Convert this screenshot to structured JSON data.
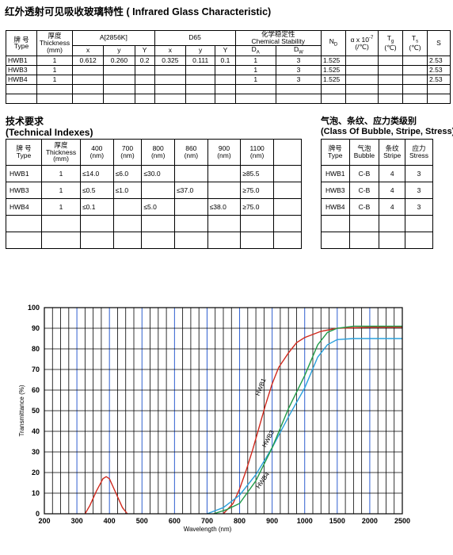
{
  "title": "红外透射可见吸收玻璃特性 ( Infrared Glass Characteristic)",
  "table1": {
    "headers": {
      "type": "牌 号\nType",
      "thickness": "厚度\nThickness\n(mm)",
      "a2856k": "A[2856K]",
      "d65": "D65",
      "chem": "化学稳定性\nChemical Stability",
      "nd": "N",
      "nd_sub": "D",
      "alpha": "α x 10\n(/℃)",
      "alpha_sup": "-7",
      "tg": "T",
      "tg_sub": "g",
      "tg_unit": "(℃)",
      "ts": "T",
      "ts_sub": "s",
      "ts_unit": "(℃)",
      "s": "S",
      "x": "x",
      "y": "y",
      "Y": "Y",
      "da": "D",
      "da_sub": "A",
      "dw": "D",
      "dw_sub": "W"
    },
    "rows": [
      [
        "HWB1",
        "1",
        "0.612",
        "0.260",
        "0.2",
        "0.325",
        "0.111",
        "0.1",
        "1",
        "3",
        "1.525",
        "",
        "",
        "",
        "2.53"
      ],
      [
        "HWB3",
        "1",
        "",
        "",
        "",
        "",
        "",
        "",
        "1",
        "3",
        "1.525",
        "",
        "",
        "",
        "2.53"
      ],
      [
        "HWB4",
        "1",
        "",
        "",
        "",
        "",
        "",
        "",
        "1",
        "3",
        "1.525",
        "",
        "",
        "",
        "2.53"
      ],
      [
        "",
        "",
        "",
        "",
        "",
        "",
        "",
        "",
        "",
        "",
        "",
        "",
        "",
        "",
        ""
      ],
      [
        "",
        "",
        "",
        "",
        "",
        "",
        "",
        "",
        "",
        "",
        "",
        "",
        "",
        "",
        ""
      ]
    ]
  },
  "tech": {
    "title_cn": "技术要求",
    "title_en": "(Technical Indexes)",
    "headers": [
      "牌 号\nType",
      "厚度\nThickness\n(mm)",
      "400\n(nm)",
      "700\n(nm)",
      "800\n(nm)",
      "860\n(nm)",
      "900\n(nm)",
      "1100\n(nm)",
      ""
    ],
    "rows": [
      [
        "HWB1",
        "1",
        "≤14.0",
        "≤6.0",
        "≤30.0",
        "",
        "",
        "≥85.5",
        ""
      ],
      [
        "HWB3",
        "1",
        "≤0.5",
        "≤1.0",
        "",
        "≤37.0",
        "",
        "≥75.0",
        ""
      ],
      [
        "HWB4",
        "1",
        "≤0.1",
        "",
        "≤5.0",
        "",
        "≤38.0",
        "≥75.0",
        ""
      ],
      [
        "",
        "",
        "",
        "",
        "",
        "",
        "",
        "",
        ""
      ],
      [
        "",
        "",
        "",
        "",
        "",
        "",
        "",
        "",
        ""
      ]
    ]
  },
  "bubble": {
    "title_cn": "气泡、条纹、应力类级别",
    "title_en": "(Class Of Bubble, Stripe, Stress)",
    "headers": [
      "牌号\nType",
      "气泡\nBubble",
      "条纹\nStripe",
      "应力\nStress"
    ],
    "rows": [
      [
        "HWB1",
        "C-B",
        "4",
        "3"
      ],
      [
        "HWB3",
        "C-B",
        "4",
        "3"
      ],
      [
        "HWB4",
        "C-B",
        "4",
        "3"
      ],
      [
        "",
        "",
        "",
        ""
      ],
      [
        "",
        "",
        "",
        ""
      ]
    ]
  },
  "chart_data": {
    "type": "line",
    "xlabel": "Wavelength (nm)",
    "ylabel": "Transmittance (%)",
    "ylim": [
      0,
      100
    ],
    "x_ticks": [
      "200",
      "300",
      "400",
      "500",
      "600",
      "700",
      "800",
      "900",
      "1000",
      "1500",
      "2000",
      "2500"
    ],
    "y_ticks": [
      "0",
      "10",
      "20",
      "30",
      "40",
      "50",
      "60",
      "70",
      "80",
      "90",
      "100"
    ],
    "grid": true,
    "series": [
      {
        "name": "HWB1",
        "color": "#d0281c",
        "points": [
          [
            325,
            0
          ],
          [
            340,
            4
          ],
          [
            360,
            11
          ],
          [
            380,
            17
          ],
          [
            390,
            18
          ],
          [
            400,
            17
          ],
          [
            420,
            10
          ],
          [
            440,
            3
          ],
          [
            455,
            0
          ],
          [
            750,
            0
          ],
          [
            780,
            5
          ],
          [
            800,
            12
          ],
          [
            820,
            21
          ],
          [
            840,
            31
          ],
          [
            860,
            42
          ],
          [
            880,
            53
          ],
          [
            900,
            63
          ],
          [
            920,
            71
          ],
          [
            950,
            78
          ],
          [
            975,
            83
          ],
          [
            1000,
            85.5
          ],
          [
            1250,
            88.5
          ],
          [
            1500,
            90
          ],
          [
            2000,
            90.5
          ],
          [
            2500,
            90.5
          ]
        ]
      },
      {
        "name": "HWB3",
        "color": "#2aa0dc",
        "points": [
          [
            700,
            0
          ],
          [
            750,
            3
          ],
          [
            800,
            9
          ],
          [
            850,
            19
          ],
          [
            900,
            32
          ],
          [
            950,
            47
          ],
          [
            1000,
            61
          ],
          [
            1200,
            76
          ],
          [
            1350,
            82
          ],
          [
            1500,
            84.5
          ],
          [
            1750,
            85
          ],
          [
            2000,
            85
          ],
          [
            2500,
            85
          ]
        ]
      },
      {
        "name": "HWB4",
        "color": "#1e9a48",
        "points": [
          [
            720,
            0
          ],
          [
            760,
            2
          ],
          [
            800,
            5
          ],
          [
            850,
            16
          ],
          [
            900,
            32
          ],
          [
            950,
            51
          ],
          [
            1000,
            67
          ],
          [
            1200,
            82
          ],
          [
            1350,
            88
          ],
          [
            1500,
            90
          ],
          [
            1750,
            91
          ],
          [
            2000,
            91
          ],
          [
            2500,
            91
          ]
        ]
      }
    ]
  }
}
